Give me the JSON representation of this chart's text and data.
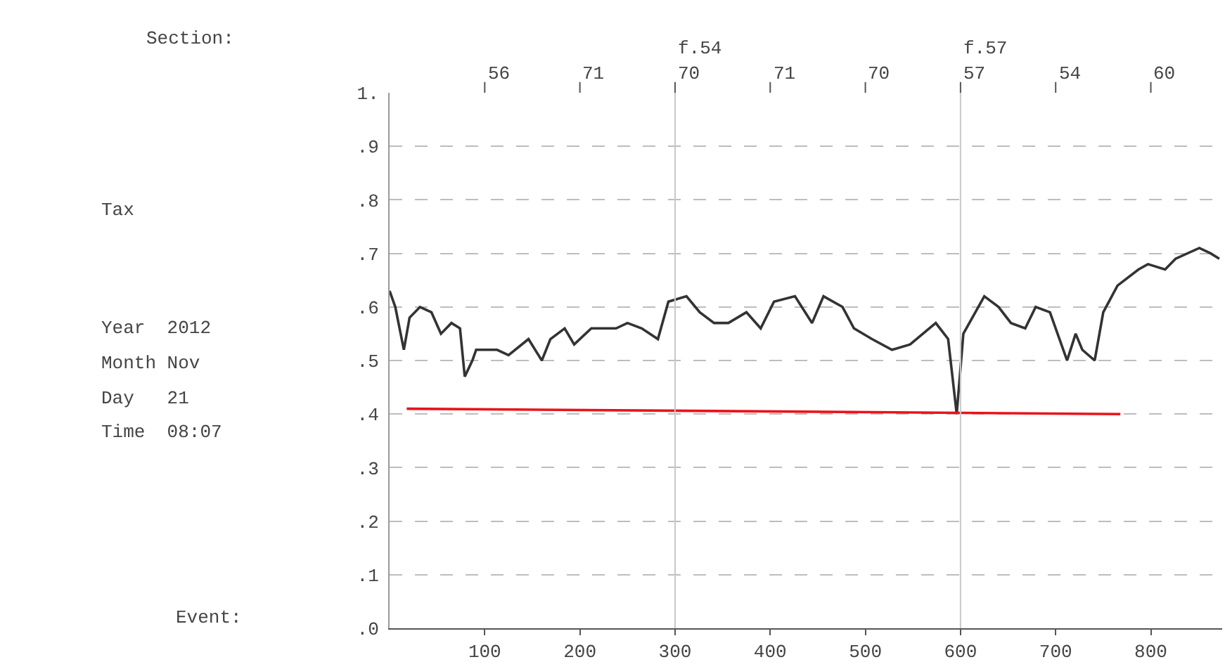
{
  "chart_data": {
    "type": "line",
    "annotations": [
      "Section:",
      "Tax",
      "Year  2012",
      "Month Nov",
      "Day   21",
      "Time  08:07",
      "Event:",
      "56",
      "71",
      "70",
      "71",
      "70",
      "57",
      "54",
      "60"
    ],
    "xlim": [
      0,
      875
    ],
    "ylim": [
      0,
      1
    ],
    "xticks": [
      100,
      200,
      300,
      400,
      500,
      600,
      700,
      800
    ],
    "yticks": [
      {
        "value": 0,
        "label": ".0"
      },
      {
        "value": 0.1,
        "label": ".1"
      },
      {
        "value": 0.2,
        "label": ".2"
      },
      {
        "value": 0.3,
        "label": ".3"
      },
      {
        "value": 0.4,
        "label": ".4"
      },
      {
        "value": 0.5,
        "label": ".5"
      },
      {
        "value": 0.6,
        "label": ".6"
      },
      {
        "value": 0.7,
        "label": ".7"
      },
      {
        "value": 0.8,
        "label": ".8"
      },
      {
        "value": 0.9,
        "label": ".9"
      },
      {
        "value": 1,
        "label": "1."
      }
    ],
    "grid": "y",
    "marker": "none",
    "line_style": "solid",
    "ref_lines": [
      {
        "axis": "x",
        "value": 300,
        "label": "f.54",
        "color": "#c8c8c8"
      },
      {
        "axis": "x",
        "value": 600,
        "label": "f.57",
        "color": "#c8c8c8"
      }
    ],
    "series": [
      {
        "color": "#333333",
        "x": [
          0,
          6,
          15,
          21,
          32,
          44,
          54,
          65,
          74,
          79,
          87,
          91,
          113,
          125,
          146,
          160,
          169,
          184,
          194,
          212,
          238,
          250,
          265,
          282,
          293,
          312,
          326,
          341,
          356,
          375,
          390,
          404,
          426,
          444,
          456,
          476,
          488,
          507,
          528,
          547,
          574,
          587,
          596,
          603,
          625,
          640,
          653,
          668,
          679,
          694,
          712,
          721,
          728,
          741,
          750,
          765,
          787,
          797,
          815,
          826,
          851,
          863,
          872
        ],
        "values": [
          0.63,
          0.6,
          0.52,
          0.58,
          0.6,
          0.59,
          0.55,
          0.57,
          0.56,
          0.47,
          0.5,
          0.52,
          0.52,
          0.51,
          0.54,
          0.5,
          0.54,
          0.56,
          0.53,
          0.56,
          0.56,
          0.57,
          0.56,
          0.54,
          0.61,
          0.62,
          0.59,
          0.57,
          0.57,
          0.59,
          0.56,
          0.61,
          0.62,
          0.57,
          0.62,
          0.6,
          0.56,
          0.54,
          0.52,
          0.53,
          0.57,
          0.54,
          0.4,
          0.55,
          0.62,
          0.6,
          0.57,
          0.56,
          0.6,
          0.59,
          0.5,
          0.55,
          0.52,
          0.5,
          0.59,
          0.64,
          0.67,
          0.68,
          0.67,
          0.69,
          0.71,
          0.7,
          0.69
        ]
      },
      {
        "color": "#e8141b",
        "x": [
          18,
          768
        ],
        "values": [
          0.41,
          0.4
        ]
      }
    ]
  }
}
